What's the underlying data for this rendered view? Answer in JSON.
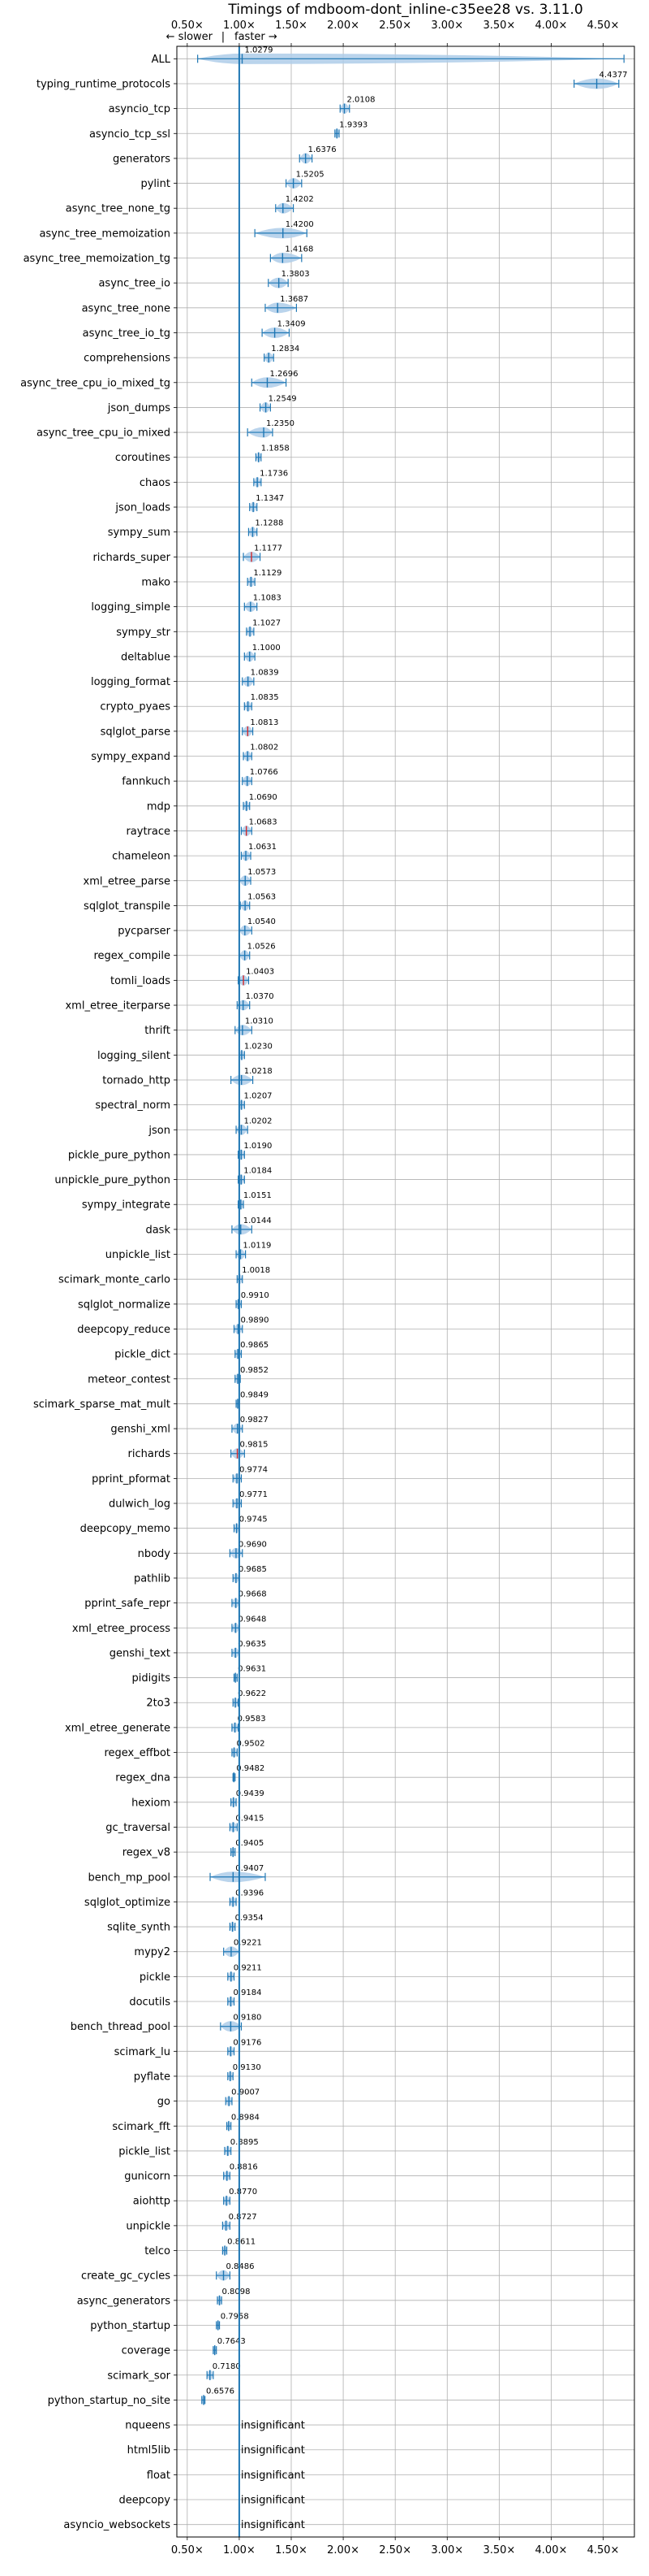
{
  "chart_data": {
    "type": "violin",
    "title": "Timings of mdboom-dont_inline-c35ee28 vs. 3.11.0",
    "direction_left": "← slower",
    "direction_separator": "|",
    "direction_right": "faster →",
    "xlim": [
      0.4,
      4.8
    ],
    "xticks": [
      0.5,
      1.0,
      1.5,
      2.0,
      2.5,
      3.0,
      3.5,
      4.0,
      4.5
    ],
    "xtick_labels": [
      "0.50×",
      "1.00×",
      "1.50×",
      "2.00×",
      "2.50×",
      "3.00×",
      "3.50×",
      "4.00×",
      "4.50×"
    ],
    "reference_line": 1.0,
    "colors": {
      "violin": "#aecde9",
      "median": "#1f77b4",
      "reference": "#1f77b4",
      "grid": "#b0b0b0",
      "flagged": "#d62728"
    },
    "insignificant_label": "insignificant",
    "benchmarks": [
      {
        "name": "ALL",
        "value": 1.0279,
        "label": "1.0279",
        "lo": 0.6,
        "hi": 4.7
      },
      {
        "name": "typing_runtime_protocols",
        "value": 4.4377,
        "label": "4.4377",
        "lo": 4.22,
        "hi": 4.65
      },
      {
        "name": "asyncio_tcp",
        "value": 2.0108,
        "label": "2.0108",
        "lo": 1.97,
        "hi": 2.06
      },
      {
        "name": "asyncio_tcp_ssl",
        "value": 1.9393,
        "label": "1.9393",
        "lo": 1.92,
        "hi": 1.96
      },
      {
        "name": "generators",
        "value": 1.6376,
        "label": "1.6376",
        "lo": 1.58,
        "hi": 1.7
      },
      {
        "name": "pylint",
        "value": 1.5205,
        "label": "1.5205",
        "lo": 1.45,
        "hi": 1.6
      },
      {
        "name": "async_tree_none_tg",
        "value": 1.4202,
        "label": "1.4202",
        "lo": 1.35,
        "hi": 1.52
      },
      {
        "name": "async_tree_memoization",
        "value": 1.42,
        "label": "1.4200",
        "lo": 1.15,
        "hi": 1.65
      },
      {
        "name": "async_tree_memoization_tg",
        "value": 1.4168,
        "label": "1.4168",
        "lo": 1.3,
        "hi": 1.6
      },
      {
        "name": "async_tree_io",
        "value": 1.3803,
        "label": "1.3803",
        "lo": 1.28,
        "hi": 1.47
      },
      {
        "name": "async_tree_none",
        "value": 1.3687,
        "label": "1.3687",
        "lo": 1.25,
        "hi": 1.55
      },
      {
        "name": "async_tree_io_tg",
        "value": 1.3409,
        "label": "1.3409",
        "lo": 1.22,
        "hi": 1.48
      },
      {
        "name": "comprehensions",
        "value": 1.2834,
        "label": "1.2834",
        "lo": 1.24,
        "hi": 1.33
      },
      {
        "name": "async_tree_cpu_io_mixed_tg",
        "value": 1.2696,
        "label": "1.2696",
        "lo": 1.12,
        "hi": 1.45
      },
      {
        "name": "json_dumps",
        "value": 1.2549,
        "label": "1.2549",
        "lo": 1.2,
        "hi": 1.3
      },
      {
        "name": "async_tree_cpu_io_mixed",
        "value": 1.235,
        "label": "1.2350",
        "lo": 1.08,
        "hi": 1.32
      },
      {
        "name": "coroutines",
        "value": 1.1858,
        "label": "1.1858",
        "lo": 1.16,
        "hi": 1.21
      },
      {
        "name": "chaos",
        "value": 1.1736,
        "label": "1.1736",
        "lo": 1.14,
        "hi": 1.21
      },
      {
        "name": "json_loads",
        "value": 1.1347,
        "label": "1.1347",
        "lo": 1.1,
        "hi": 1.17
      },
      {
        "name": "sympy_sum",
        "value": 1.1288,
        "label": "1.1288",
        "lo": 1.09,
        "hi": 1.17
      },
      {
        "name": "richards_super",
        "value": 1.1177,
        "label": "1.1177",
        "lo": 1.04,
        "hi": 1.2,
        "flagged": true
      },
      {
        "name": "mako",
        "value": 1.1129,
        "label": "1.1129",
        "lo": 1.08,
        "hi": 1.15
      },
      {
        "name": "logging_simple",
        "value": 1.1083,
        "label": "1.1083",
        "lo": 1.05,
        "hi": 1.17
      },
      {
        "name": "sympy_str",
        "value": 1.1027,
        "label": "1.1027",
        "lo": 1.07,
        "hi": 1.14
      },
      {
        "name": "deltablue",
        "value": 1.1,
        "label": "1.1000",
        "lo": 1.05,
        "hi": 1.15
      },
      {
        "name": "logging_format",
        "value": 1.0839,
        "label": "1.0839",
        "lo": 1.03,
        "hi": 1.14
      },
      {
        "name": "crypto_pyaes",
        "value": 1.0835,
        "label": "1.0835",
        "lo": 1.05,
        "hi": 1.12
      },
      {
        "name": "sqlglot_parse",
        "value": 1.0813,
        "label": "1.0813",
        "lo": 1.03,
        "hi": 1.13,
        "flagged": true
      },
      {
        "name": "sympy_expand",
        "value": 1.0802,
        "label": "1.0802",
        "lo": 1.04,
        "hi": 1.12
      },
      {
        "name": "fannkuch",
        "value": 1.0766,
        "label": "1.0766",
        "lo": 1.03,
        "hi": 1.12
      },
      {
        "name": "mdp",
        "value": 1.069,
        "label": "1.0690",
        "lo": 1.04,
        "hi": 1.1
      },
      {
        "name": "raytrace",
        "value": 1.0683,
        "label": "1.0683",
        "lo": 1.02,
        "hi": 1.12,
        "flagged": true
      },
      {
        "name": "chameleon",
        "value": 1.0631,
        "label": "1.0631",
        "lo": 1.02,
        "hi": 1.11
      },
      {
        "name": "xml_etree_parse",
        "value": 1.0573,
        "label": "1.0573",
        "lo": 1.0,
        "hi": 1.11
      },
      {
        "name": "sqlglot_transpile",
        "value": 1.0563,
        "label": "1.0563",
        "lo": 1.01,
        "hi": 1.1
      },
      {
        "name": "pycparser",
        "value": 1.054,
        "label": "1.0540",
        "lo": 1.0,
        "hi": 1.12
      },
      {
        "name": "regex_compile",
        "value": 1.0526,
        "label": "1.0526",
        "lo": 1.0,
        "hi": 1.1
      },
      {
        "name": "tomli_loads",
        "value": 1.0403,
        "label": "1.0403",
        "lo": 0.99,
        "hi": 1.09,
        "flagged": true
      },
      {
        "name": "xml_etree_iterparse",
        "value": 1.037,
        "label": "1.0370",
        "lo": 0.98,
        "hi": 1.1
      },
      {
        "name": "thrift",
        "value": 1.031,
        "label": "1.0310",
        "lo": 0.96,
        "hi": 1.12
      },
      {
        "name": "logging_silent",
        "value": 1.023,
        "label": "1.0230",
        "lo": 1.0,
        "hi": 1.05
      },
      {
        "name": "tornado_http",
        "value": 1.0218,
        "label": "1.0218",
        "lo": 0.92,
        "hi": 1.13
      },
      {
        "name": "spectral_norm",
        "value": 1.0207,
        "label": "1.0207",
        "lo": 1.0,
        "hi": 1.05
      },
      {
        "name": "json",
        "value": 1.0202,
        "label": "1.0202",
        "lo": 0.97,
        "hi": 1.08
      },
      {
        "name": "pickle_pure_python",
        "value": 1.019,
        "label": "1.0190",
        "lo": 0.99,
        "hi": 1.05
      },
      {
        "name": "unpickle_pure_python",
        "value": 1.0184,
        "label": "1.0184",
        "lo": 0.99,
        "hi": 1.05
      },
      {
        "name": "sympy_integrate",
        "value": 1.0151,
        "label": "1.0151",
        "lo": 0.99,
        "hi": 1.04
      },
      {
        "name": "dask",
        "value": 1.0144,
        "label": "1.0144",
        "lo": 0.93,
        "hi": 1.12
      },
      {
        "name": "unpickle_list",
        "value": 1.0119,
        "label": "1.0119",
        "lo": 0.97,
        "hi": 1.06
      },
      {
        "name": "scimark_monte_carlo",
        "value": 1.0018,
        "label": "1.0018",
        "lo": 0.98,
        "hi": 1.03
      },
      {
        "name": "sqlglot_normalize",
        "value": 0.991,
        "label": "0.9910",
        "lo": 0.97,
        "hi": 1.02
      },
      {
        "name": "deepcopy_reduce",
        "value": 0.989,
        "label": "0.9890",
        "lo": 0.95,
        "hi": 1.03
      },
      {
        "name": "pickle_dict",
        "value": 0.9865,
        "label": "0.9865",
        "lo": 0.96,
        "hi": 1.02
      },
      {
        "name": "meteor_contest",
        "value": 0.9852,
        "label": "0.9852",
        "lo": 0.96,
        "hi": 1.01
      },
      {
        "name": "scimark_sparse_mat_mult",
        "value": 0.9849,
        "label": "0.9849",
        "lo": 0.97,
        "hi": 1.0
      },
      {
        "name": "genshi_xml",
        "value": 0.9827,
        "label": "0.9827",
        "lo": 0.93,
        "hi": 1.03
      },
      {
        "name": "richards",
        "value": 0.9815,
        "label": "0.9815",
        "lo": 0.92,
        "hi": 1.05,
        "flagged": true
      },
      {
        "name": "pprint_pformat",
        "value": 0.9774,
        "label": "0.9774",
        "lo": 0.94,
        "hi": 1.02
      },
      {
        "name": "dulwich_log",
        "value": 0.9771,
        "label": "0.9771",
        "lo": 0.94,
        "hi": 1.02
      },
      {
        "name": "deepcopy_memo",
        "value": 0.9745,
        "label": "0.9745",
        "lo": 0.95,
        "hi": 1.0
      },
      {
        "name": "nbody",
        "value": 0.969,
        "label": "0.9690",
        "lo": 0.91,
        "hi": 1.03
      },
      {
        "name": "pathlib",
        "value": 0.9685,
        "label": "0.9685",
        "lo": 0.94,
        "hi": 1.0
      },
      {
        "name": "pprint_safe_repr",
        "value": 0.9668,
        "label": "0.9668",
        "lo": 0.93,
        "hi": 1.0
      },
      {
        "name": "xml_etree_process",
        "value": 0.9648,
        "label": "0.9648",
        "lo": 0.93,
        "hi": 1.0
      },
      {
        "name": "genshi_text",
        "value": 0.9635,
        "label": "0.9635",
        "lo": 0.93,
        "hi": 1.0
      },
      {
        "name": "pidigits",
        "value": 0.9631,
        "label": "0.9631",
        "lo": 0.95,
        "hi": 0.98
      },
      {
        "name": "2to3",
        "value": 0.9622,
        "label": "0.9622",
        "lo": 0.94,
        "hi": 0.99
      },
      {
        "name": "xml_etree_generate",
        "value": 0.9583,
        "label": "0.9583",
        "lo": 0.93,
        "hi": 0.99
      },
      {
        "name": "regex_effbot",
        "value": 0.9502,
        "label": "0.9502",
        "lo": 0.93,
        "hi": 0.98
      },
      {
        "name": "regex_dna",
        "value": 0.9482,
        "label": "0.9482",
        "lo": 0.94,
        "hi": 0.96
      },
      {
        "name": "hexiom",
        "value": 0.9439,
        "label": "0.9439",
        "lo": 0.92,
        "hi": 0.97
      },
      {
        "name": "gc_traversal",
        "value": 0.9415,
        "label": "0.9415",
        "lo": 0.91,
        "hi": 0.98
      },
      {
        "name": "regex_v8",
        "value": 0.9405,
        "label": "0.9405",
        "lo": 0.92,
        "hi": 0.96
      },
      {
        "name": "bench_mp_pool",
        "value": 0.9407,
        "label": "0.9407",
        "lo": 0.72,
        "hi": 1.25
      },
      {
        "name": "sqlglot_optimize",
        "value": 0.9396,
        "label": "0.9396",
        "lo": 0.91,
        "hi": 0.97
      },
      {
        "name": "sqlite_synth",
        "value": 0.9354,
        "label": "0.9354",
        "lo": 0.91,
        "hi": 0.96
      },
      {
        "name": "mypy2",
        "value": 0.9221,
        "label": "0.9221",
        "lo": 0.85,
        "hi": 1.0
      },
      {
        "name": "pickle",
        "value": 0.9211,
        "label": "0.9211",
        "lo": 0.89,
        "hi": 0.95
      },
      {
        "name": "docutils",
        "value": 0.9184,
        "label": "0.9184",
        "lo": 0.89,
        "hi": 0.95
      },
      {
        "name": "bench_thread_pool",
        "value": 0.918,
        "label": "0.9180",
        "lo": 0.82,
        "hi": 1.02
      },
      {
        "name": "scimark_lu",
        "value": 0.9176,
        "label": "0.9176",
        "lo": 0.89,
        "hi": 0.95
      },
      {
        "name": "pyflate",
        "value": 0.913,
        "label": "0.9130",
        "lo": 0.89,
        "hi": 0.94
      },
      {
        "name": "go",
        "value": 0.9007,
        "label": "0.9007",
        "lo": 0.87,
        "hi": 0.93
      },
      {
        "name": "scimark_fft",
        "value": 0.8984,
        "label": "0.8984",
        "lo": 0.88,
        "hi": 0.92
      },
      {
        "name": "pickle_list",
        "value": 0.8895,
        "label": "0.8895",
        "lo": 0.86,
        "hi": 0.92
      },
      {
        "name": "gunicorn",
        "value": 0.8816,
        "label": "0.8816",
        "lo": 0.85,
        "hi": 0.91
      },
      {
        "name": "aiohttp",
        "value": 0.877,
        "label": "0.8770",
        "lo": 0.85,
        "hi": 0.91
      },
      {
        "name": "unpickle",
        "value": 0.8727,
        "label": "0.8727",
        "lo": 0.84,
        "hi": 0.91
      },
      {
        "name": "telco",
        "value": 0.8611,
        "label": "0.8611",
        "lo": 0.84,
        "hi": 0.88
      },
      {
        "name": "create_gc_cycles",
        "value": 0.8486,
        "label": "0.8486",
        "lo": 0.78,
        "hi": 0.91
      },
      {
        "name": "async_generators",
        "value": 0.8098,
        "label": "0.8098",
        "lo": 0.79,
        "hi": 0.83
      },
      {
        "name": "python_startup",
        "value": 0.7958,
        "label": "0.7958",
        "lo": 0.78,
        "hi": 0.81
      },
      {
        "name": "coverage",
        "value": 0.7643,
        "label": "0.7643",
        "lo": 0.75,
        "hi": 0.78
      },
      {
        "name": "scimark_sor",
        "value": 0.718,
        "label": "0.7180",
        "lo": 0.69,
        "hi": 0.75
      },
      {
        "name": "python_startup_no_site",
        "value": 0.6576,
        "label": "0.6576",
        "lo": 0.64,
        "hi": 0.67
      },
      {
        "name": "nqueens",
        "insignificant": true
      },
      {
        "name": "html5lib",
        "insignificant": true
      },
      {
        "name": "float",
        "insignificant": true
      },
      {
        "name": "deepcopy",
        "insignificant": true
      },
      {
        "name": "asyncio_websockets",
        "insignificant": true
      }
    ]
  }
}
